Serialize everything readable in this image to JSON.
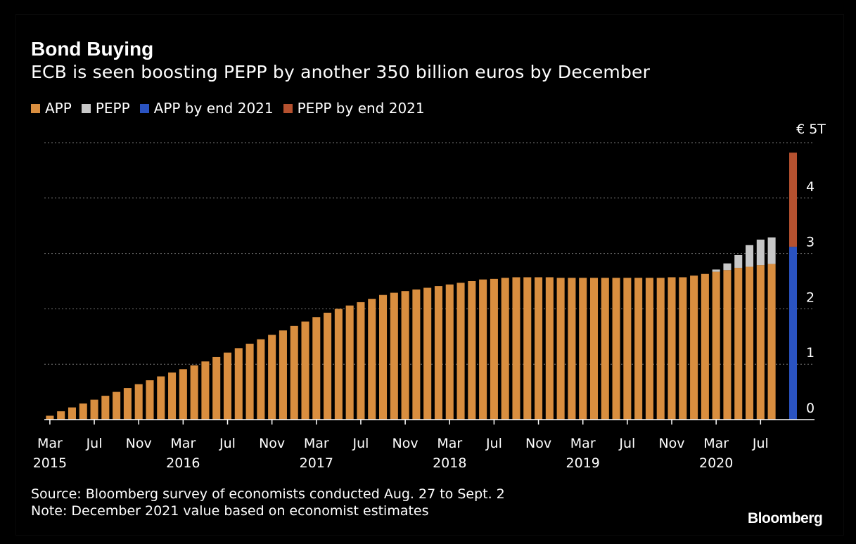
{
  "chart_data": {
    "type": "bar",
    "title": "Bond Buying",
    "subtitle": "ECB is seen boosting PEPP by another 350 billion euros by December",
    "ylabel_unit": "€ 5T",
    "ylim": [
      0,
      5
    ],
    "yticks": [
      {
        "v": 0,
        "label": "0"
      },
      {
        "v": 1,
        "label": "1"
      },
      {
        "v": 2,
        "label": "2"
      },
      {
        "v": 3,
        "label": "3"
      },
      {
        "v": 4,
        "label": "4"
      }
    ],
    "legend": [
      {
        "label": "APP",
        "color": "#d98e3f"
      },
      {
        "label": "PEPP",
        "color": "#c8c8c8"
      },
      {
        "label": "APP by end 2021",
        "color": "#2a53c1"
      },
      {
        "label": "PEPP by end 2021",
        "color": "#b5512f"
      }
    ],
    "xticks": [
      {
        "i": 0,
        "month": "Mar",
        "year": "2015"
      },
      {
        "i": 4,
        "month": "Jul",
        "year": ""
      },
      {
        "i": 8,
        "month": "Nov",
        "year": ""
      },
      {
        "i": 12,
        "month": "Mar",
        "year": "2016"
      },
      {
        "i": 16,
        "month": "Jul",
        "year": ""
      },
      {
        "i": 20,
        "month": "Nov",
        "year": ""
      },
      {
        "i": 24,
        "month": "Mar",
        "year": "2017"
      },
      {
        "i": 28,
        "month": "Jul",
        "year": ""
      },
      {
        "i": 32,
        "month": "Nov",
        "year": ""
      },
      {
        "i": 36,
        "month": "Mar",
        "year": "2018"
      },
      {
        "i": 40,
        "month": "Jul",
        "year": ""
      },
      {
        "i": 44,
        "month": "Nov",
        "year": ""
      },
      {
        "i": 48,
        "month": "Mar",
        "year": "2019"
      },
      {
        "i": 52,
        "month": "Jul",
        "year": ""
      },
      {
        "i": 56,
        "month": "Nov",
        "year": ""
      },
      {
        "i": 60,
        "month": "Mar",
        "year": "2020"
      },
      {
        "i": 64,
        "month": "Jul",
        "year": ""
      }
    ],
    "series": [
      {
        "name": "APP",
        "color": "#d98e3f",
        "values": [
          0.07,
          0.15,
          0.22,
          0.29,
          0.36,
          0.43,
          0.5,
          0.57,
          0.64,
          0.71,
          0.78,
          0.85,
          0.91,
          0.98,
          1.05,
          1.13,
          1.21,
          1.29,
          1.37,
          1.45,
          1.53,
          1.61,
          1.69,
          1.77,
          1.85,
          1.93,
          2.0,
          2.06,
          2.12,
          2.18,
          2.25,
          2.29,
          2.32,
          2.35,
          2.38,
          2.41,
          2.44,
          2.47,
          2.5,
          2.53,
          2.54,
          2.56,
          2.57,
          2.57,
          2.57,
          2.57,
          2.56,
          2.56,
          2.56,
          2.56,
          2.56,
          2.56,
          2.56,
          2.56,
          2.56,
          2.56,
          2.57,
          2.57,
          2.6,
          2.63,
          2.67,
          2.7,
          2.74,
          2.76,
          2.79,
          2.81
        ]
      },
      {
        "name": "PEPP",
        "color": "#c8c8c8",
        "values": [
          0,
          0,
          0,
          0,
          0,
          0,
          0,
          0,
          0,
          0,
          0,
          0,
          0,
          0,
          0,
          0,
          0,
          0,
          0,
          0,
          0,
          0,
          0,
          0,
          0,
          0,
          0,
          0,
          0,
          0,
          0,
          0,
          0,
          0,
          0,
          0,
          0,
          0,
          0,
          0,
          0,
          0,
          0,
          0,
          0,
          0,
          0,
          0,
          0,
          0,
          0,
          0,
          0,
          0,
          0,
          0,
          0,
          0,
          0,
          0,
          0.04,
          0.12,
          0.23,
          0.39,
          0.46,
          0.48
        ]
      }
    ],
    "projection": {
      "label": "December 2021",
      "app": 3.12,
      "pepp": 1.7
    }
  },
  "footer": {
    "source": "Source: Bloomberg survey of economists conducted Aug. 27 to Sept. 2",
    "note": "Note: December 2021 value based on economist estimates",
    "brand": "Bloomberg"
  }
}
